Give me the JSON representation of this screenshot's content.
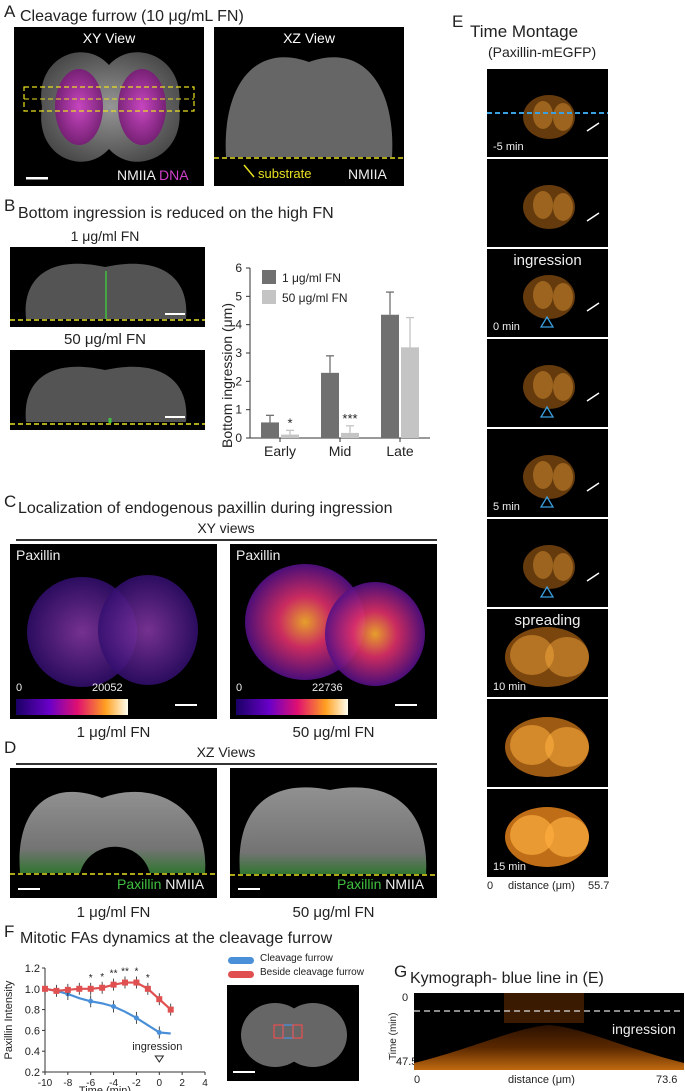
{
  "panelA": {
    "letter": "A",
    "title": "Cleavage furrow (10 μg/mL FN)",
    "xy_title": "XY View",
    "xz_title": "XZ View",
    "label_nmiia": "NMIIA",
    "label_dna": "DNA",
    "label_substrate": "substrate",
    "label_nmiia2": "NMIIA"
  },
  "panelB": {
    "letter": "B",
    "title": "Bottom ingression is reduced on the high FN",
    "img1_label": "1 μg/ml FN",
    "img2_label": "50 μg/ml FN",
    "chart": {
      "ylabel": "Bottom ingression (μm)",
      "legend": [
        "1 μg/ml FN",
        "50 μg/ml FN"
      ]
    }
  },
  "panelC": {
    "letter": "C",
    "title": "Localization of endogenous paxillin during ingression",
    "subtitle": "XY views",
    "left_label": "Paxillin",
    "right_label": "Paxillin",
    "left_min": "0",
    "left_max": "20052",
    "right_min": "0",
    "right_max": "22736",
    "left_caption": "1 μg/ml FN",
    "right_caption": "50 μg/ml FN"
  },
  "panelD": {
    "letter": "D",
    "subtitle": "XZ Views",
    "left_paxillin": "Paxillin",
    "left_nmiia": "NMIIA",
    "right_paxillin": "Paxillin",
    "right_nmiia": "NMIIA",
    "left_caption": "1 μg/ml FN",
    "right_caption": "50 μg/ml FN"
  },
  "panelE": {
    "letter": "E",
    "title": "Time Montage",
    "subtitle": "(Paxillin-mEGFP)",
    "frame_labels": [
      "-5 min",
      "",
      "0 min",
      "",
      "5 min",
      "",
      "10 min",
      "",
      "15 min"
    ],
    "frame_titles": [
      "",
      "",
      "ingression",
      "",
      "",
      "",
      "spreading",
      "",
      ""
    ],
    "axis_left": "0",
    "axis_mid": "distance (μm)",
    "axis_right": "55.7"
  },
  "panelF": {
    "letter": "F",
    "title": "Mitotic FAs dynamics at the cleavage furrow",
    "ylabel": "Paxillin Intensity",
    "xlabel": "Time (min)",
    "annotation": "ingression",
    "legend": [
      "Cleavage furrow",
      "Beside cleavage furrow"
    ]
  },
  "panelG": {
    "letter": "G",
    "title": "Kymograph- blue line in (E)",
    "ylabel": "Time (min)",
    "y_top": "0",
    "y_bottom": "47.5",
    "x_left": "0",
    "x_mid": "distance (μm)",
    "x_right": "73.6",
    "annotation": "ingression"
  },
  "chart_data": [
    {
      "type": "bar",
      "categories": [
        "Early",
        "Mid",
        "Late"
      ],
      "ylabel": "Bottom ingression (μm)",
      "ylim": [
        0,
        6
      ],
      "yticks": [
        0,
        1,
        2,
        3,
        4,
        5,
        6
      ],
      "legend_position": "top-left",
      "colors": [
        "#707070",
        "#c4c4c4"
      ],
      "series": [
        {
          "name": "1 μg/ml FN",
          "values": [
            0.55,
            2.3,
            4.35
          ],
          "errors": [
            0.25,
            0.6,
            0.8
          ]
        },
        {
          "name": "50 μg/ml FN",
          "values": [
            0.12,
            0.18,
            3.2
          ],
          "errors": [
            0.15,
            0.25,
            1.05
          ]
        }
      ],
      "significance": [
        "*",
        "***",
        ""
      ]
    },
    {
      "type": "line",
      "ylabel": "Paxillin Intensity",
      "xlabel": "Time (min)",
      "xlim": [
        -10,
        4
      ],
      "ylim": [
        0.2,
        1.2
      ],
      "xticks": [
        -10,
        -8,
        -6,
        -4,
        -2,
        0,
        2,
        4
      ],
      "yticks": [
        0.2,
        0.4,
        0.6,
        0.8,
        1.0,
        1.2
      ],
      "colors": [
        "#4a90d9",
        "#e05050"
      ],
      "series": [
        {
          "name": "Cleavage furrow",
          "x": [
            -10,
            -9,
            -8,
            -7,
            -6,
            -5,
            -4,
            -3,
            -2,
            -1,
            0,
            1
          ],
          "y": [
            1.0,
            0.98,
            0.95,
            0.91,
            0.88,
            0.86,
            0.83,
            0.78,
            0.72,
            0.65,
            0.58,
            0.57
          ]
        },
        {
          "name": "Beside cleavage furrow",
          "x": [
            -10,
            -9,
            -8,
            -7,
            -6,
            -5,
            -4,
            -3,
            -2,
            -1,
            0,
            1
          ],
          "y": [
            1.0,
            0.98,
            0.99,
            1.0,
            1.0,
            1.01,
            1.04,
            1.06,
            1.06,
            1.0,
            0.9,
            0.8
          ]
        }
      ],
      "significance_marks": [
        "*",
        "*",
        "**",
        "**",
        "*",
        "*"
      ],
      "annotation": "ingression"
    }
  ]
}
